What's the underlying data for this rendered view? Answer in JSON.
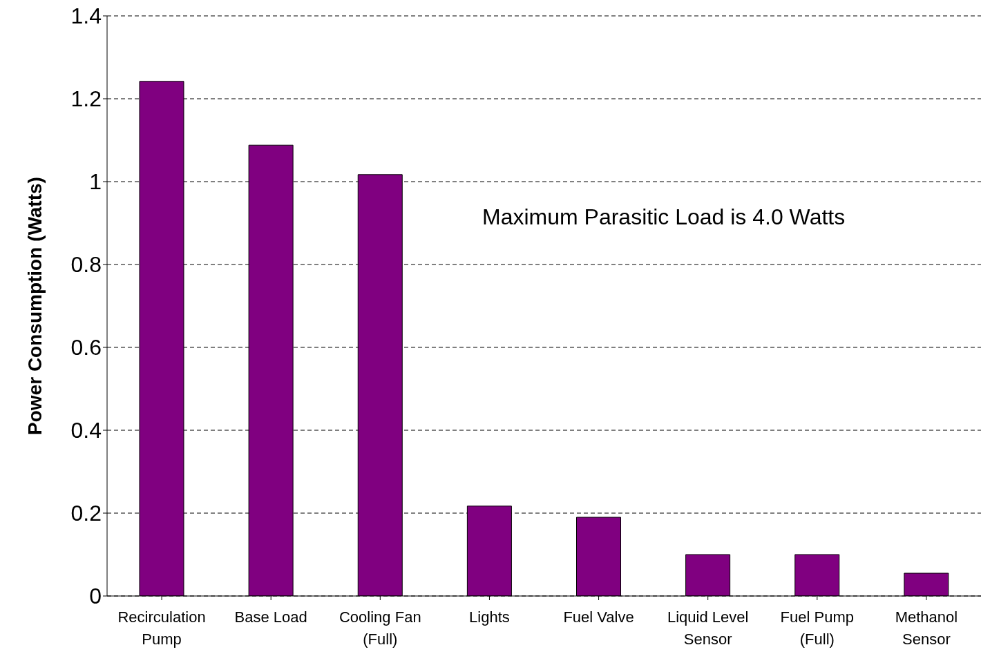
{
  "chart_data": {
    "type": "bar",
    "ylabel": "Power Consumption (Watts)",
    "categories": [
      "Recirculation Pump",
      "Base Load",
      "Cooling Fan (Full)",
      "Lights",
      "Fuel Valve",
      "Liquid Level Sensor",
      "Fuel Pump (Full)",
      "Methanol Sensor"
    ],
    "values": [
      1.242,
      1.088,
      1.017,
      0.217,
      0.19,
      0.1,
      0.1,
      0.055
    ],
    "color": "#800080",
    "ylim": [
      0,
      1.4
    ],
    "yticks": [
      0,
      0.2,
      0.4,
      0.6,
      0.8,
      1,
      1.2,
      1.4
    ],
    "grid": "y",
    "annotations": [
      "Maximum Parasitic Load is 4.0 Watts"
    ]
  }
}
